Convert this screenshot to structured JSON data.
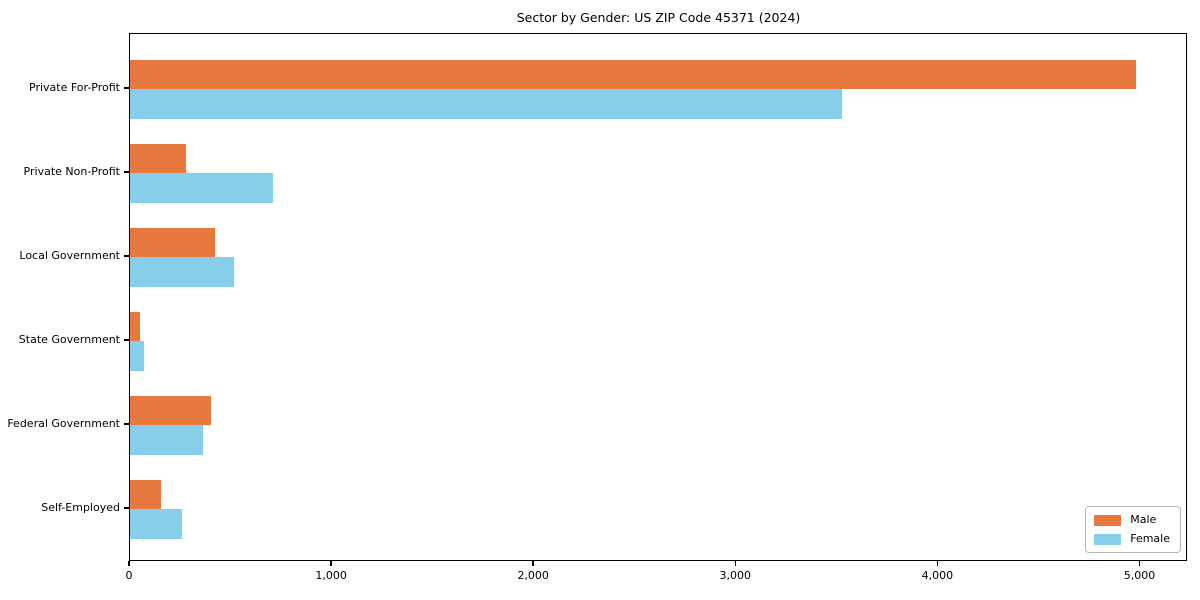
{
  "chart_data": {
    "type": "bar",
    "orientation": "horizontal",
    "title": "Sector by Gender: US ZIP Code 45371 (2024)",
    "categories": [
      "Private For-Profit",
      "Private Non-Profit",
      "Local Government",
      "State Government",
      "Federal Government",
      "Self-Employed"
    ],
    "series": [
      {
        "name": "Male",
        "color": "#e8793e",
        "values": [
          4985,
          280,
          420,
          50,
          400,
          155
        ]
      },
      {
        "name": "Female",
        "color": "#87ceeb",
        "values": [
          3530,
          710,
          515,
          70,
          360,
          260
        ]
      }
    ],
    "xlabel": "",
    "ylabel": "",
    "xlim": [
      0,
      5235
    ],
    "x_ticks": [
      0,
      1000,
      2000,
      3000,
      4000,
      5000
    ],
    "x_tick_labels": [
      "0",
      "1,000",
      "2,000",
      "3,000",
      "4,000",
      "5,000"
    ],
    "grid": false,
    "legend_position": "lower right",
    "frame": true
  }
}
